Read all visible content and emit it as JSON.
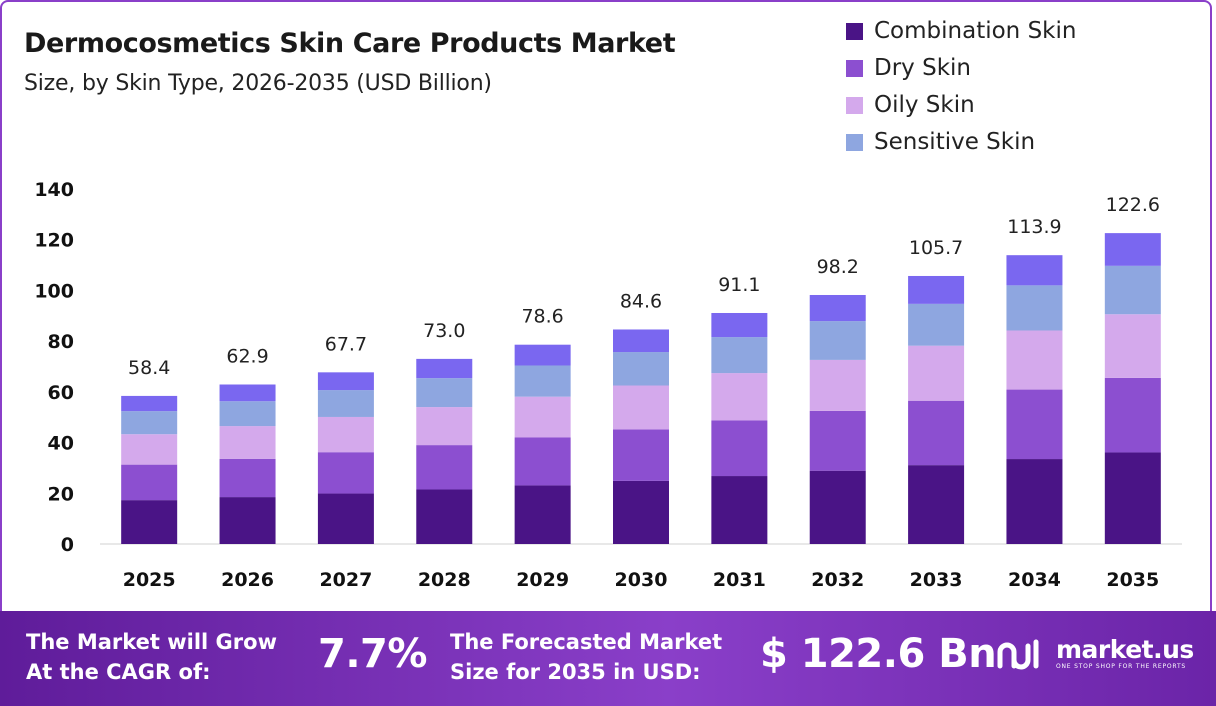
{
  "header": {
    "title": "Dermocosmetics Skin Care Products Market",
    "subtitle": "Size, by Skin Type, 2026-2035 (USD Billion)"
  },
  "legend": [
    {
      "label": "Combination Skin",
      "color": "#4a1486"
    },
    {
      "label": "Dry Skin",
      "color": "#8c4fd0"
    },
    {
      "label": "Oily Skin",
      "color": "#d4a9ec"
    },
    {
      "label": "Sensitive Skin",
      "color": "#8ea6e0"
    }
  ],
  "chart_data": {
    "type": "bar",
    "stacked": true,
    "categories": [
      "2025",
      "2026",
      "2027",
      "2028",
      "2029",
      "2030",
      "2031",
      "2032",
      "2033",
      "2034",
      "2035"
    ],
    "series": [
      {
        "name": "Combination Skin",
        "color": "#4a1486",
        "values": [
          17.3,
          18.5,
          19.9,
          21.5,
          23.1,
          24.9,
          26.8,
          28.9,
          31.1,
          33.5,
          36.1
        ]
      },
      {
        "name": "Dry Skin",
        "color": "#8c4fd0",
        "values": [
          14.0,
          15.1,
          16.3,
          17.5,
          18.9,
          20.3,
          21.9,
          23.6,
          25.4,
          27.4,
          29.4
        ]
      },
      {
        "name": "Oily Skin",
        "color": "#d4a9ec",
        "values": [
          12.0,
          12.9,
          13.9,
          15.0,
          16.1,
          17.3,
          18.7,
          20.1,
          21.7,
          23.3,
          25.1
        ]
      },
      {
        "name": "Sensitive Skin",
        "color": "#8ea6e0",
        "values": [
          9.1,
          9.8,
          10.6,
          11.4,
          12.3,
          13.2,
          14.2,
          15.3,
          16.5,
          17.8,
          19.1
        ]
      },
      {
        "name": "",
        "color": "#7a67f0",
        "values": [
          6.0,
          6.6,
          7.0,
          7.6,
          8.2,
          8.9,
          9.5,
          10.3,
          11.0,
          11.9,
          12.9
        ]
      }
    ],
    "totals": [
      58.4,
      62.9,
      67.7,
      73.0,
      78.6,
      84.6,
      91.1,
      98.2,
      105.7,
      113.9,
      122.6
    ],
    "total_labels": [
      "58.4",
      "62.9",
      "67.7",
      "73.0",
      "78.6",
      "84.6",
      "91.1",
      "98.2",
      "105.7",
      "113.9",
      "122.6"
    ],
    "y_ticks": [
      0,
      20,
      40,
      60,
      80,
      100,
      120,
      140
    ],
    "ylim": [
      0,
      140
    ],
    "grid": false,
    "legend_position": "top-right"
  },
  "footer": {
    "cagr_label_line1": "The Market will Grow",
    "cagr_label_line2": "At the CAGR of:",
    "cagr_value": "7.7%",
    "forecast_label_line1": "The Forecasted Market",
    "forecast_label_line2": "Size for 2035 in USD:",
    "forecast_value": "$ 122.6 Bn",
    "brand_name": "market.us",
    "brand_tagline": "ONE STOP SHOP FOR THE REPORTS",
    "brand_icon": "market-us-logo-icon"
  }
}
